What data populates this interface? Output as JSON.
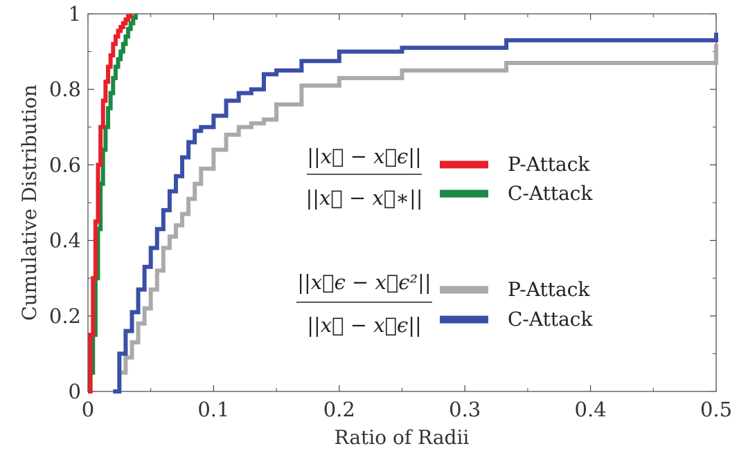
{
  "chart_data": {
    "type": "line",
    "step": true,
    "xlabel": "Ratio of Radii",
    "ylabel": "Cumulative Distribution",
    "xlim": [
      0,
      0.5
    ],
    "ylim": [
      0,
      1
    ],
    "xticks": [
      0,
      0.1,
      0.2,
      0.3,
      0.4,
      0.5
    ],
    "xtick_labels": [
      "0",
      "0.1",
      "0.2",
      "0.3",
      "0.4",
      "0.5"
    ],
    "yticks": [
      0,
      0.2,
      0.4,
      0.6,
      0.8,
      1
    ],
    "ytick_labels": [
      "0",
      "0.2",
      "0.4",
      "0.6",
      "0.8",
      "1"
    ],
    "legend_groups": [
      {
        "formula_numerator": "||x⃗ − x⃗ϵ||",
        "formula_denominator": "||x⃗ − x⃗∗||",
        "entries": [
          "P-Attack",
          "C-Attack"
        ]
      },
      {
        "formula_numerator": "||x⃗ϵ − x⃗ϵ²||",
        "formula_denominator": "||x⃗ − x⃗ϵ||",
        "entries": [
          "P-Attack",
          "C-Attack"
        ]
      }
    ],
    "series": [
      {
        "name": "P-Attack",
        "ratio": "||x - x_eps|| / ||x - x_*||",
        "color": "#e8202a",
        "x": [
          0,
          0.002,
          0.004,
          0.006,
          0.008,
          0.01,
          0.012,
          0.014,
          0.016,
          0.018,
          0.02,
          0.022,
          0.024,
          0.026,
          0.028,
          0.03,
          0.032,
          0.034
        ],
        "y": [
          0,
          0.15,
          0.3,
          0.45,
          0.6,
          0.7,
          0.77,
          0.82,
          0.86,
          0.89,
          0.92,
          0.94,
          0.955,
          0.965,
          0.975,
          0.985,
          0.993,
          1.0
        ]
      },
      {
        "name": "C-Attack",
        "ratio": "||x - x_eps|| / ||x - x_*||",
        "color": "#1a8a44",
        "x": [
          0,
          0.002,
          0.004,
          0.006,
          0.008,
          0.01,
          0.012,
          0.014,
          0.016,
          0.018,
          0.02,
          0.022,
          0.024,
          0.026,
          0.028,
          0.03,
          0.032,
          0.034,
          0.036,
          0.038
        ],
        "y": [
          0,
          0.05,
          0.15,
          0.3,
          0.43,
          0.55,
          0.64,
          0.7,
          0.75,
          0.79,
          0.83,
          0.86,
          0.88,
          0.9,
          0.92,
          0.94,
          0.96,
          0.975,
          0.99,
          1.0
        ]
      },
      {
        "name": "P-Attack",
        "ratio": "||x_eps - x_eps2|| / ||x - x_eps||",
        "color": "#aaaaad",
        "x": [
          0.02,
          0.025,
          0.03,
          0.035,
          0.04,
          0.045,
          0.05,
          0.055,
          0.06,
          0.065,
          0.07,
          0.075,
          0.08,
          0.085,
          0.09,
          0.1,
          0.11,
          0.12,
          0.13,
          0.14,
          0.15,
          0.17,
          0.2,
          0.25,
          0.333,
          0.5
        ],
        "y": [
          0,
          0.05,
          0.09,
          0.13,
          0.18,
          0.22,
          0.27,
          0.32,
          0.38,
          0.41,
          0.44,
          0.47,
          0.51,
          0.55,
          0.59,
          0.64,
          0.68,
          0.7,
          0.71,
          0.72,
          0.76,
          0.81,
          0.83,
          0.85,
          0.87,
          0.92
        ]
      },
      {
        "name": "C-Attack",
        "ratio": "||x_eps - x_eps2|| / ||x - x_eps||",
        "color": "#3a4fa8",
        "x": [
          0.02,
          0.025,
          0.03,
          0.035,
          0.04,
          0.045,
          0.05,
          0.055,
          0.06,
          0.065,
          0.07,
          0.075,
          0.08,
          0.085,
          0.09,
          0.1,
          0.11,
          0.12,
          0.13,
          0.14,
          0.15,
          0.17,
          0.2,
          0.25,
          0.333,
          0.5
        ],
        "y": [
          0,
          0.1,
          0.16,
          0.21,
          0.27,
          0.33,
          0.38,
          0.43,
          0.48,
          0.53,
          0.57,
          0.62,
          0.66,
          0.69,
          0.7,
          0.73,
          0.77,
          0.79,
          0.8,
          0.84,
          0.85,
          0.875,
          0.9,
          0.91,
          0.93,
          0.95
        ]
      }
    ]
  }
}
